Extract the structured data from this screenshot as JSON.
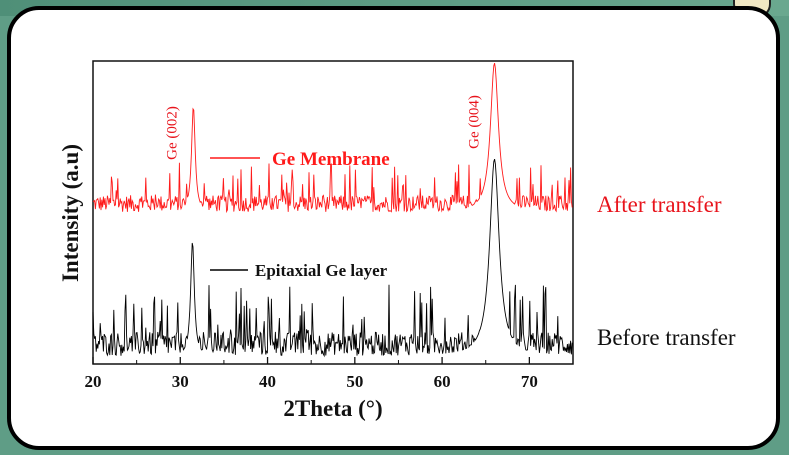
{
  "chart_data": {
    "type": "line",
    "xlabel": "2Theta (°)",
    "ylabel": "Intensity (a.u)",
    "xlim": [
      20,
      75
    ],
    "xticks": [
      "20",
      "30",
      "40",
      "50",
      "60",
      "70"
    ],
    "grid": false,
    "legend_position": "inside-top-left",
    "series": [
      {
        "name": "Ge Membrane",
        "side_label": "After transfer",
        "color": "#ff1a1a",
        "peaks": [
          {
            "x": 31.5,
            "label": "Ge (002)",
            "relative_height": 0.55
          },
          {
            "x": 66.0,
            "label": "Ge (004)",
            "relative_height": 1.0
          }
        ]
      },
      {
        "name": "Epitaxial Ge layer",
        "side_label": "Before transfer",
        "color": "#000000",
        "peaks": [
          {
            "x": 31.4,
            "relative_height": 0.45
          },
          {
            "x": 66.0,
            "relative_height": 1.0
          }
        ]
      }
    ]
  }
}
